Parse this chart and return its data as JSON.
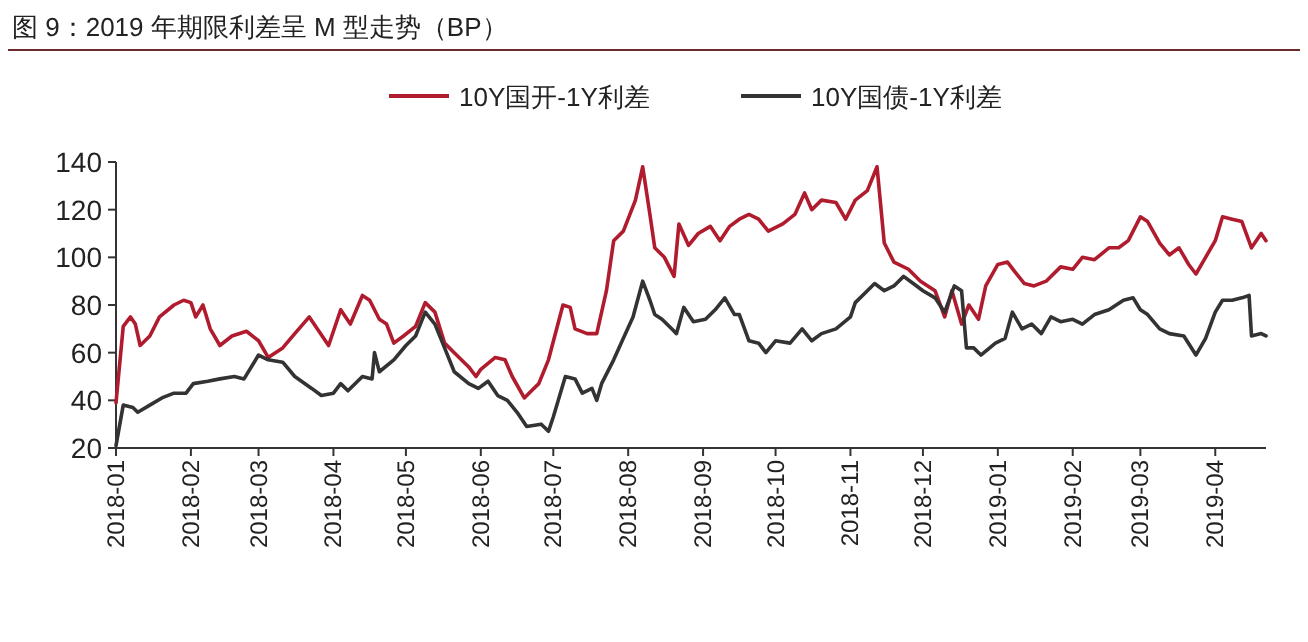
{
  "chart_data": {
    "type": "line",
    "title": "图 9：2019 年期限利差呈 M 型走势（BP）",
    "legend": "top",
    "xlim": [
      "2018-01-01",
      "2019-04-22"
    ],
    "xticks": [
      "2018-01",
      "2018-02",
      "2018-03",
      "2018-04",
      "2018-05",
      "2018-06",
      "2018-07",
      "2018-08",
      "2018-09",
      "2018-10",
      "2018-11",
      "2018-12",
      "2019-01",
      "2019-02",
      "2019-03",
      "2019-04"
    ],
    "ylim": [
      20,
      140
    ],
    "yticks": [
      20,
      40,
      60,
      80,
      100,
      120,
      140
    ],
    "series": [
      {
        "name": "10Y国开-1Y利差",
        "color": "#b01c2e",
        "x": [
          "2018-01-01",
          "2018-01-04",
          "2018-01-07",
          "2018-01-09",
          "2018-01-11",
          "2018-01-15",
          "2018-01-19",
          "2018-01-25",
          "2018-01-29",
          "2018-02-01",
          "2018-02-03",
          "2018-02-06",
          "2018-02-09",
          "2018-02-13",
          "2018-02-18",
          "2018-02-24",
          "2018-03-01",
          "2018-03-05",
          "2018-03-11",
          "2018-03-16",
          "2018-03-22",
          "2018-03-26",
          "2018-03-30",
          "2018-04-04",
          "2018-04-08",
          "2018-04-13",
          "2018-04-16",
          "2018-04-20",
          "2018-04-23",
          "2018-04-26",
          "2018-04-30",
          "2018-05-05",
          "2018-05-09",
          "2018-05-13",
          "2018-05-17",
          "2018-05-21",
          "2018-05-27",
          "2018-05-30",
          "2018-06-01",
          "2018-06-07",
          "2018-06-11",
          "2018-06-14",
          "2018-06-19",
          "2018-06-22",
          "2018-06-25",
          "2018-06-29",
          "2018-07-05",
          "2018-07-08",
          "2018-07-10",
          "2018-07-15",
          "2018-07-19",
          "2018-07-23",
          "2018-07-26",
          "2018-07-30",
          "2018-08-04",
          "2018-08-07",
          "2018-08-10",
          "2018-08-12",
          "2018-08-16",
          "2018-08-20",
          "2018-08-22",
          "2018-08-26",
          "2018-08-30",
          "2018-09-04",
          "2018-09-08",
          "2018-09-12",
          "2018-09-16",
          "2018-09-20",
          "2018-09-24",
          "2018-09-28",
          "2018-10-04",
          "2018-10-09",
          "2018-10-13",
          "2018-10-16",
          "2018-10-20",
          "2018-10-26",
          "2018-10-30",
          "2018-11-03",
          "2018-11-08",
          "2018-11-12",
          "2018-11-15",
          "2018-11-19",
          "2018-11-25",
          "2018-11-30",
          "2018-12-06",
          "2018-12-10",
          "2018-12-13",
          "2018-12-17",
          "2018-12-20",
          "2018-12-24",
          "2018-12-27",
          "2019-01-01",
          "2019-01-05",
          "2019-01-08",
          "2019-01-12",
          "2019-01-16",
          "2019-01-21",
          "2019-01-27",
          "2019-02-01",
          "2019-02-05",
          "2019-02-10",
          "2019-02-16",
          "2019-02-20",
          "2019-02-24",
          "2019-03-01",
          "2019-03-04",
          "2019-03-09",
          "2019-03-13",
          "2019-03-17",
          "2019-03-21",
          "2019-03-24",
          "2019-03-28",
          "2019-04-01",
          "2019-04-04",
          "2019-04-08",
          "2019-04-12",
          "2019-04-16",
          "2019-04-20",
          "2019-04-22"
        ],
        "values": [
          39,
          71,
          75,
          72,
          63,
          67,
          75,
          80,
          82,
          81,
          75,
          80,
          70,
          63,
          67,
          69,
          65,
          58,
          62,
          68,
          75,
          69,
          63,
          78,
          72,
          84,
          82,
          74,
          72,
          64,
          67,
          71,
          81,
          77,
          64,
          60,
          54,
          50,
          53,
          58,
          57,
          50,
          41,
          44,
          47,
          57,
          80,
          79,
          70,
          68,
          68,
          86,
          107,
          111,
          124,
          138,
          118,
          104,
          100,
          92,
          114,
          105,
          110,
          113,
          107,
          113,
          116,
          118,
          116,
          111,
          114,
          118,
          127,
          120,
          124,
          123,
          116,
          124,
          128,
          138,
          106,
          98,
          95,
          90,
          86,
          75,
          86,
          72,
          80,
          74,
          88,
          97,
          98,
          94,
          89,
          88,
          90,
          96,
          95,
          100,
          99,
          104,
          104,
          107,
          117,
          115,
          106,
          101,
          104,
          97,
          93,
          100,
          107,
          117,
          116,
          115,
          104,
          110,
          107
        ]
      },
      {
        "name": "10Y国债-1Y利差",
        "color": "#333333",
        "x": [
          "2018-01-01",
          "2018-01-04",
          "2018-01-08",
          "2018-01-10",
          "2018-01-15",
          "2018-01-20",
          "2018-01-25",
          "2018-01-30",
          "2018-02-02",
          "2018-02-08",
          "2018-02-13",
          "2018-02-19",
          "2018-02-23",
          "2018-03-01",
          "2018-03-05",
          "2018-03-11",
          "2018-03-16",
          "2018-03-23",
          "2018-03-27",
          "2018-04-01",
          "2018-04-04",
          "2018-04-07",
          "2018-04-13",
          "2018-04-17",
          "2018-04-18",
          "2018-04-20",
          "2018-04-26",
          "2018-05-01",
          "2018-05-05",
          "2018-05-09",
          "2018-05-13",
          "2018-05-17",
          "2018-05-21",
          "2018-05-27",
          "2018-05-31",
          "2018-06-04",
          "2018-06-08",
          "2018-06-12",
          "2018-06-16",
          "2018-06-20",
          "2018-06-26",
          "2018-06-29",
          "2018-07-01",
          "2018-07-06",
          "2018-07-10",
          "2018-07-13",
          "2018-07-17",
          "2018-07-19",
          "2018-07-21",
          "2018-07-26",
          "2018-07-30",
          "2018-08-03",
          "2018-08-07",
          "2018-08-10",
          "2018-08-12",
          "2018-08-15",
          "2018-08-19",
          "2018-08-21",
          "2018-08-24",
          "2018-08-28",
          "2018-09-02",
          "2018-09-06",
          "2018-09-10",
          "2018-09-14",
          "2018-09-16",
          "2018-09-20",
          "2018-09-24",
          "2018-09-27",
          "2018-10-01",
          "2018-10-07",
          "2018-10-12",
          "2018-10-16",
          "2018-10-20",
          "2018-10-26",
          "2018-11-01",
          "2018-11-03",
          "2018-11-08",
          "2018-11-11",
          "2018-11-15",
          "2018-11-19",
          "2018-11-23",
          "2018-11-27",
          "2018-12-01",
          "2018-12-06",
          "2018-12-10",
          "2018-12-14",
          "2018-12-17",
          "2018-12-19",
          "2018-12-22",
          "2018-12-25",
          "2018-12-31",
          "2019-01-04",
          "2019-01-07",
          "2019-01-11",
          "2019-01-15",
          "2019-01-19",
          "2019-01-23",
          "2019-01-27",
          "2019-02-01",
          "2019-02-05",
          "2019-02-10",
          "2019-02-16",
          "2019-02-22",
          "2019-02-26",
          "2019-03-01",
          "2019-03-04",
          "2019-03-09",
          "2019-03-13",
          "2019-03-19",
          "2019-03-24",
          "2019-03-28",
          "2019-04-01",
          "2019-04-04",
          "2019-04-08",
          "2019-04-12",
          "2019-04-15",
          "2019-04-16",
          "2019-04-20",
          "2019-04-22"
        ],
        "values": [
          21,
          38,
          37,
          35,
          38,
          41,
          43,
          43,
          47,
          48,
          49,
          50,
          49,
          59,
          57,
          56,
          50,
          45,
          42,
          43,
          47,
          44,
          50,
          49,
          60,
          52,
          57,
          63,
          67,
          77,
          72,
          62,
          52,
          47,
          45,
          48,
          42,
          40,
          35,
          29,
          30,
          27,
          33,
          50,
          49,
          43,
          45,
          40,
          47,
          57,
          66,
          75,
          90,
          82,
          76,
          74,
          70,
          68,
          79,
          73,
          74,
          78,
          83,
          76,
          76,
          65,
          64,
          60,
          65,
          64,
          70,
          65,
          68,
          70,
          75,
          81,
          86,
          89,
          86,
          88,
          92,
          89,
          86,
          83,
          77,
          88,
          86,
          62,
          62,
          59,
          64,
          66,
          77,
          70,
          72,
          68,
          75,
          73,
          74,
          72,
          76,
          78,
          82,
          83,
          78,
          76,
          70,
          68,
          67,
          59,
          66,
          77,
          82,
          82,
          83,
          84,
          67,
          68,
          67
        ]
      }
    ]
  }
}
